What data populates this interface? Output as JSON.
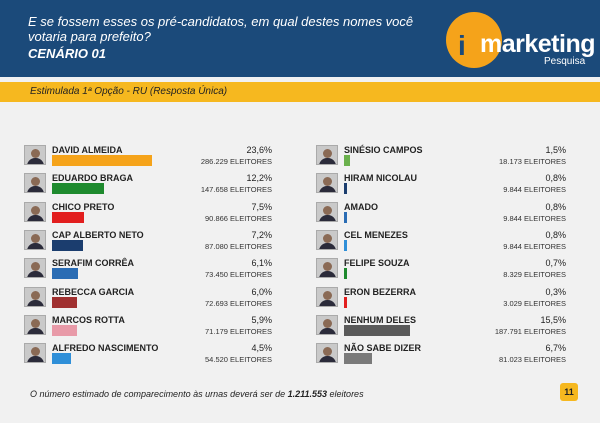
{
  "header": {
    "question": "E se fossem esses os pré-candidatos, em qual destes nomes você votaria para prefeito?",
    "scenario": "CENÁRIO 01",
    "logo_i": "i",
    "logo_text": "marketing",
    "logo_sub": "Pesquisa"
  },
  "band": {
    "label": "Estimulada 1ª Opção - RU (Resposta Única)"
  },
  "chart_data": {
    "type": "bar",
    "orientation": "horizontal",
    "value_unit": "%",
    "xlim": [
      0,
      23.6
    ],
    "columns": [
      [
        {
          "name": "DAVID ALMEIDA",
          "pct_label": "23,6%",
          "value": 23.6,
          "votes": "286.229 ELEITORES",
          "color": "#f5a31a",
          "photo": false
        },
        {
          "name": "EDUARDO BRAGA",
          "pct_label": "12,2%",
          "value": 12.2,
          "votes": "147.658 ELEITORES",
          "color": "#1e8a2e",
          "photo": false
        },
        {
          "name": "CHICO PRETO",
          "pct_label": "7,5%",
          "value": 7.5,
          "votes": "90.866 ELEITORES",
          "color": "#e21e1e",
          "photo": false
        },
        {
          "name": "CAP ALBERTO NETO",
          "pct_label": "7,2%",
          "value": 7.2,
          "votes": "87.080 ELEITORES",
          "color": "#1b3d6e",
          "photo": false
        },
        {
          "name": "SERAFIM CORRÊA",
          "pct_label": "6,1%",
          "value": 6.1,
          "votes": "73.450 ELEITORES",
          "color": "#2a6cb4",
          "photo": false
        },
        {
          "name": "REBECCA GARCIA",
          "pct_label": "6,0%",
          "value": 6.0,
          "votes": "72.693 ELEITORES",
          "color": "#a03030",
          "photo": false
        },
        {
          "name": "MARCOS ROTTA",
          "pct_label": "5,9%",
          "value": 5.9,
          "votes": "71.179 ELEITORES",
          "color": "#e89aa8",
          "photo": false
        },
        {
          "name": "ALFREDO NASCIMENTO",
          "pct_label": "4,5%",
          "value": 4.5,
          "votes": "54.520 ELEITORES",
          "color": "#2f8fd8",
          "photo": false
        }
      ],
      [
        {
          "name": "SINÉSIO CAMPOS",
          "pct_label": "1,5%",
          "value": 1.5,
          "votes": "18.173 ELEITORES",
          "color": "#6ab04c",
          "photo": false
        },
        {
          "name": "HIRAM NICOLAU",
          "pct_label": "0,8%",
          "value": 0.8,
          "votes": "9.844 ELEITORES",
          "color": "#1b3d6e",
          "photo": false
        },
        {
          "name": "AMADO",
          "pct_label": "0,8%",
          "value": 0.8,
          "votes": "9.844 ELEITORES",
          "color": "#2a6cb4",
          "photo": false
        },
        {
          "name": "CEL MENEZES",
          "pct_label": "0,8%",
          "value": 0.8,
          "votes": "9.844 ELEITORES",
          "color": "#2f8fd8",
          "photo": false
        },
        {
          "name": "FELIPE SOUZA",
          "pct_label": "0,7%",
          "value": 0.7,
          "votes": "8.329 ELEITORES",
          "color": "#1e8a2e",
          "photo": false
        },
        {
          "name": "ERON BEZERRA",
          "pct_label": "0,3%",
          "value": 0.3,
          "votes": "3.029 ELEITORES",
          "color": "#e21e1e",
          "photo": false
        },
        {
          "name": "NENHUM DELES",
          "pct_label": "15,5%",
          "value": 15.5,
          "votes": "187.791 ELEITORES",
          "color": "#5a5a5a",
          "photo": false
        },
        {
          "name": "NÃO SABE DIZER",
          "pct_label": "6,7%",
          "value": 6.7,
          "votes": "81.023 ELEITORES",
          "color": "#7a7a7a",
          "photo": false
        }
      ]
    ]
  },
  "footer": {
    "text_before": "O número estimado de comparecimento às urnas deverá ser de",
    "total": "1.211.553",
    "text_after": "eleitores"
  },
  "page_number": "11"
}
